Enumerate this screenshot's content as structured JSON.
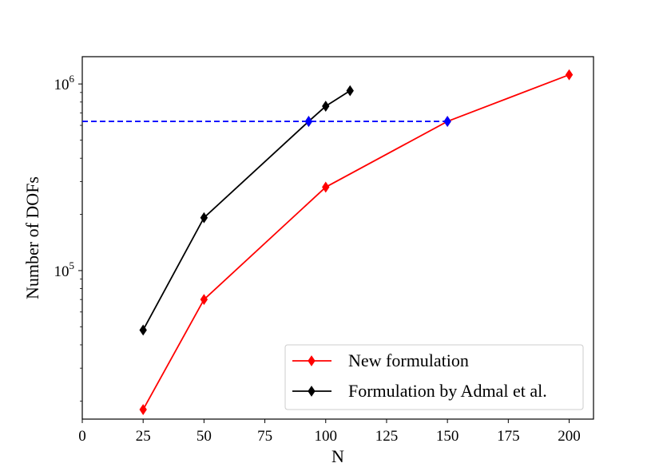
{
  "chart_data": {
    "type": "line",
    "xlabel": "N",
    "ylabel": "Number of DOFs",
    "yscale": "log",
    "xlim": [
      0,
      210
    ],
    "ylim": [
      16000,
      1400000
    ],
    "xticks": [
      0,
      25,
      50,
      75,
      100,
      125,
      150,
      175,
      200
    ],
    "yticks": [
      {
        "value": 100000,
        "base": "10",
        "exp": "5"
      },
      {
        "value": 1000000,
        "base": "10",
        "exp": "6"
      }
    ],
    "grid": false,
    "legend_position": "lower-right",
    "series": [
      {
        "name": "New formulation",
        "color": "#ff0000",
        "marker": "diamond",
        "x": [
          25,
          50,
          100,
          150,
          200
        ],
        "y": [
          18000,
          70000,
          280000,
          630000,
          1120000
        ]
      },
      {
        "name": "Formulation by Admal et al.",
        "color": "#000000",
        "marker": "diamond",
        "x": [
          25,
          50,
          93,
          100,
          110
        ],
        "y": [
          48000,
          192000,
          630000,
          760000,
          920000
        ]
      }
    ],
    "reference_line": {
      "style": "dashed",
      "color": "#0000ff",
      "y": 630000,
      "x_start": 0,
      "x_end": 150,
      "markers_at_x": [
        93,
        150
      ]
    }
  }
}
